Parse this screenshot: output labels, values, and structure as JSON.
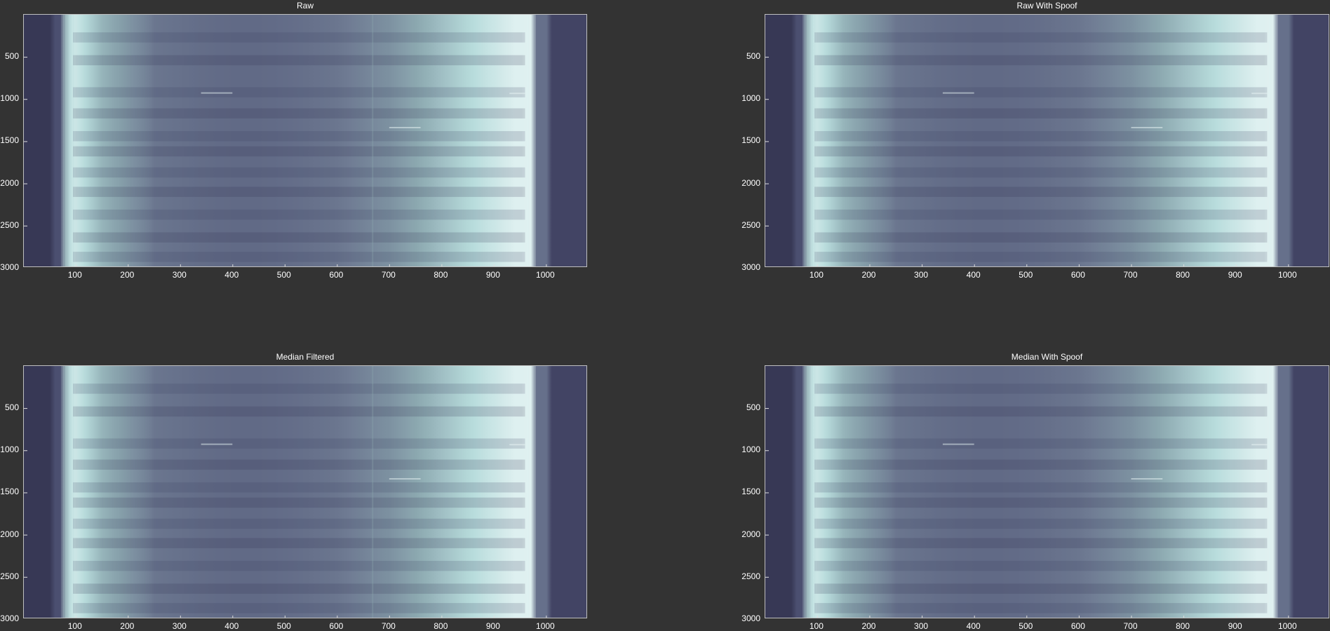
{
  "window": {
    "background": "#333333"
  },
  "colormap": [
    "#2f2f4b",
    "#4e5274",
    "#6e7a92",
    "#8ca8b0",
    "#b8dcdc",
    "#eaf6f6"
  ],
  "chart_data": [
    {
      "type": "heatmap",
      "title": "Raw",
      "x_range": [
        1,
        1080
      ],
      "y_range": [
        1,
        3000
      ],
      "y_reversed": true,
      "xticks": [
        100,
        200,
        300,
        400,
        500,
        600,
        700,
        800,
        900,
        1000
      ],
      "yticks": [
        500,
        1000,
        1500,
        2000,
        2500,
        3000
      ],
      "xtick_labels": [
        "100",
        "200",
        "300",
        "400",
        "500",
        "600",
        "700",
        "800",
        "900",
        "1000"
      ],
      "ytick_labels": [
        "500",
        "1000",
        "1500",
        "2000",
        "2500",
        "3000"
      ],
      "spoof_line_x": 667
    },
    {
      "type": "heatmap",
      "title": "Raw With Spoof",
      "x_range": [
        1,
        1080
      ],
      "y_range": [
        1,
        3000
      ],
      "y_reversed": true,
      "xticks": [
        100,
        200,
        300,
        400,
        500,
        600,
        700,
        800,
        900,
        1000
      ],
      "yticks": [
        500,
        1000,
        1500,
        2000,
        2500,
        3000
      ],
      "xtick_labels": [
        "100",
        "200",
        "300",
        "400",
        "500",
        "600",
        "700",
        "800",
        "900",
        "1000"
      ],
      "ytick_labels": [
        "500",
        "1000",
        "1500",
        "2000",
        "2500",
        "3000"
      ],
      "spoof_line_x": null
    },
    {
      "type": "heatmap",
      "title": "Median Filtered",
      "x_range": [
        1,
        1080
      ],
      "y_range": [
        1,
        3000
      ],
      "y_reversed": true,
      "xticks": [
        100,
        200,
        300,
        400,
        500,
        600,
        700,
        800,
        900,
        1000
      ],
      "yticks": [
        500,
        1000,
        1500,
        2000,
        2500,
        3000
      ],
      "xtick_labels": [
        "100",
        "200",
        "300",
        "400",
        "500",
        "600",
        "700",
        "800",
        "900",
        "1000"
      ],
      "ytick_labels": [
        "500",
        "1000",
        "1500",
        "2000",
        "2500",
        "3000"
      ],
      "spoof_line_x": 667
    },
    {
      "type": "heatmap",
      "title": "Median With Spoof",
      "x_range": [
        1,
        1080
      ],
      "y_range": [
        1,
        3000
      ],
      "y_reversed": true,
      "xticks": [
        100,
        200,
        300,
        400,
        500,
        600,
        700,
        800,
        900,
        1000
      ],
      "yticks": [
        500,
        1000,
        1500,
        2000,
        2500,
        3000
      ],
      "xtick_labels": [
        "100",
        "200",
        "300",
        "400",
        "500",
        "600",
        "700",
        "800",
        "900",
        "1000"
      ],
      "ytick_labels": [
        "500",
        "1000",
        "1500",
        "2000",
        "2500",
        "3000"
      ],
      "spoof_line_x": null
    }
  ]
}
